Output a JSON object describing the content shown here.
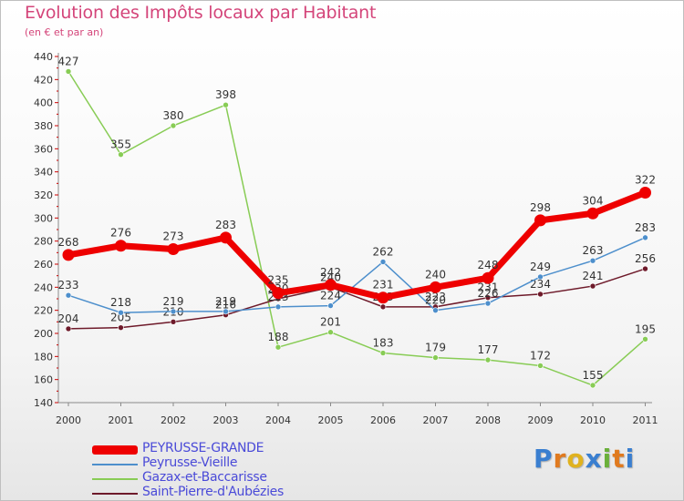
{
  "chart_data": {
    "type": "line",
    "title": "Evolution des Impôts locaux par Habitant",
    "subtitle": "(en € et par an)",
    "xlabel": "",
    "ylabel": "",
    "ylim": [
      140,
      440
    ],
    "yticks": [
      "140",
      "160",
      "180",
      "200",
      "220",
      "240",
      "260",
      "280",
      "300",
      "320",
      "340",
      "360",
      "380",
      "400",
      "420",
      "440"
    ],
    "categories": [
      "2000",
      "2001",
      "2002",
      "2003",
      "2004",
      "2005",
      "2006",
      "2007",
      "2008",
      "2009",
      "2010",
      "2011"
    ],
    "series": [
      {
        "name": "Gazax-et-Baccarisse",
        "color": "#88cc55",
        "values": [
          427,
          355,
          380,
          398,
          188,
          201,
          183,
          179,
          177,
          172,
          155,
          195
        ],
        "labels": [
          "427",
          "355",
          "380",
          "398",
          "188",
          "201",
          "183",
          "179",
          "177",
          "172",
          "155",
          "195"
        ]
      },
      {
        "name": "Saint-Pierre-d'Aubézies",
        "color": "#6e1a2a",
        "values": [
          204,
          205,
          210,
          216,
          230,
          240,
          223,
          223,
          231,
          234,
          241,
          256
        ],
        "labels": [
          "204",
          "205",
          "210",
          "216",
          "230",
          "240",
          "223",
          "223",
          "231",
          "234",
          "241",
          "256"
        ]
      },
      {
        "name": "Peyrusse-Vieille",
        "color": "#4d8fcc",
        "values": [
          233,
          218,
          219,
          219,
          223,
          224,
          262,
          220,
          226,
          249,
          263,
          283
        ],
        "labels": [
          "233",
          "218",
          "219",
          "219",
          "223",
          "224",
          "262",
          "220",
          "226",
          "249",
          "263",
          "283"
        ]
      },
      {
        "name": "PEYRUSSE-GRANDE",
        "color": "#ee0000",
        "values": [
          268,
          276,
          273,
          283,
          235,
          242,
          231,
          240,
          248,
          298,
          304,
          322
        ],
        "labels": [
          "268",
          "276",
          "273",
          "283",
          "235",
          "242",
          "231",
          "240",
          "248",
          "298",
          "304",
          "322"
        ]
      }
    ],
    "legend": [
      "PEYRUSSE-GRANDE",
      "Peyrusse-Vieille",
      "Gazax-et-Baccarisse",
      "Saint-Pierre-d'Aubézies"
    ],
    "legend_position": "bottom-left",
    "grid": false
  },
  "logo": {
    "letters": [
      "P",
      "r",
      "o",
      "x",
      "i",
      "t",
      "i"
    ],
    "colors": [
      "#3a7fd0",
      "#e07a1f",
      "#e0b21f",
      "#3a7fd0",
      "#6ab03a",
      "#e07a1f",
      "#3a7fd0"
    ]
  }
}
